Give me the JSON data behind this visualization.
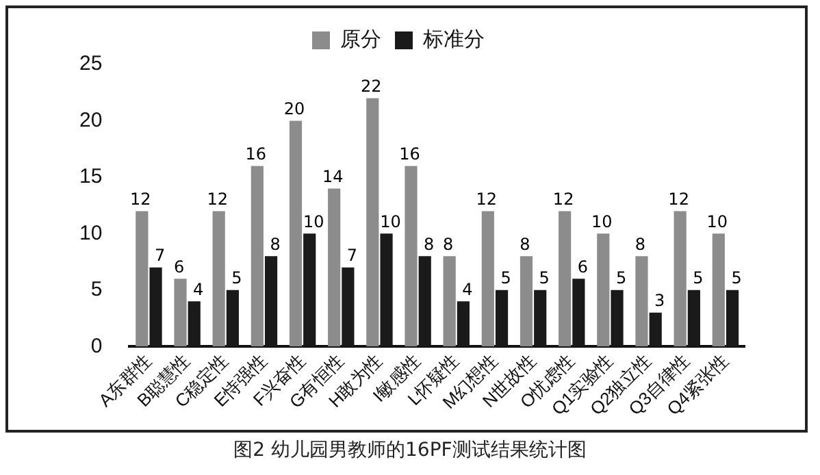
{
  "chart_data": {
    "type": "bar",
    "categories": [
      "A东群性",
      "B聪慧性",
      "C稳定性",
      "E恃强性",
      "F兴奋性",
      "G有恒性",
      "H敢为性",
      "I敏感性",
      "L怀疑性",
      "M幻想性",
      "N世故性",
      "O忧虑性",
      "Q1实验性",
      "Q2独立性",
      "Q3自律性",
      "Q4紧张性"
    ],
    "series": [
      {
        "name": "原分",
        "color": "#8c8c8c",
        "values": [
          12,
          6,
          12,
          16,
          20,
          14,
          22,
          16,
          8,
          12,
          8,
          12,
          10,
          8,
          12,
          10
        ]
      },
      {
        "name": "标准分",
        "color": "#1a1a1a",
        "values": [
          7,
          4,
          5,
          8,
          10,
          7,
          10,
          8,
          4,
          5,
          5,
          6,
          5,
          3,
          5,
          5
        ]
      }
    ],
    "ylim": [
      0,
      25
    ],
    "yticks": [
      0,
      5,
      10,
      15,
      20,
      25
    ],
    "grid": false,
    "legend": "top",
    "data_labels": true,
    "annotations": [
      "图2  幼儿园男教师的16PF测试结果统计图"
    ]
  }
}
